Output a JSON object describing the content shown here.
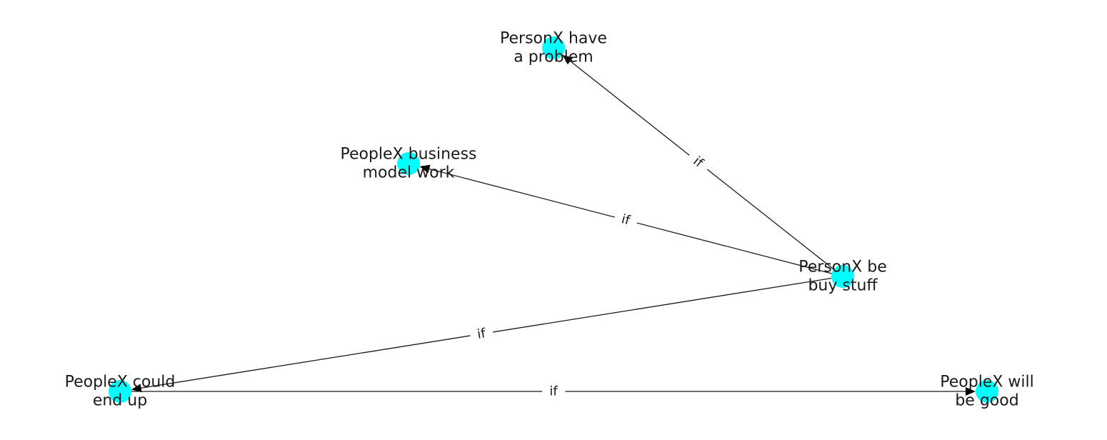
{
  "graph": {
    "node_color": "#00ffff",
    "edge_color": "#1a1a1a",
    "nodes": [
      {
        "id": "n1",
        "label_lines": [
          "PersonX have",
          "a problem"
        ]
      },
      {
        "id": "n2",
        "label_lines": [
          "PeopleX business",
          "model work"
        ]
      },
      {
        "id": "n3",
        "label_lines": [
          "PersonX be",
          "buy stuff"
        ]
      },
      {
        "id": "n4",
        "label_lines": [
          "PeopleX could",
          "end up"
        ]
      },
      {
        "id": "n5",
        "label_lines": [
          "PeopleX will",
          "be good"
        ]
      }
    ],
    "edges": [
      {
        "from": "n3",
        "to": "n1",
        "label": "if"
      },
      {
        "from": "n3",
        "to": "n2",
        "label": "if"
      },
      {
        "from": "n3",
        "to": "n4",
        "label": "if"
      },
      {
        "from": "n4",
        "to": "n5",
        "label": "if"
      }
    ]
  }
}
